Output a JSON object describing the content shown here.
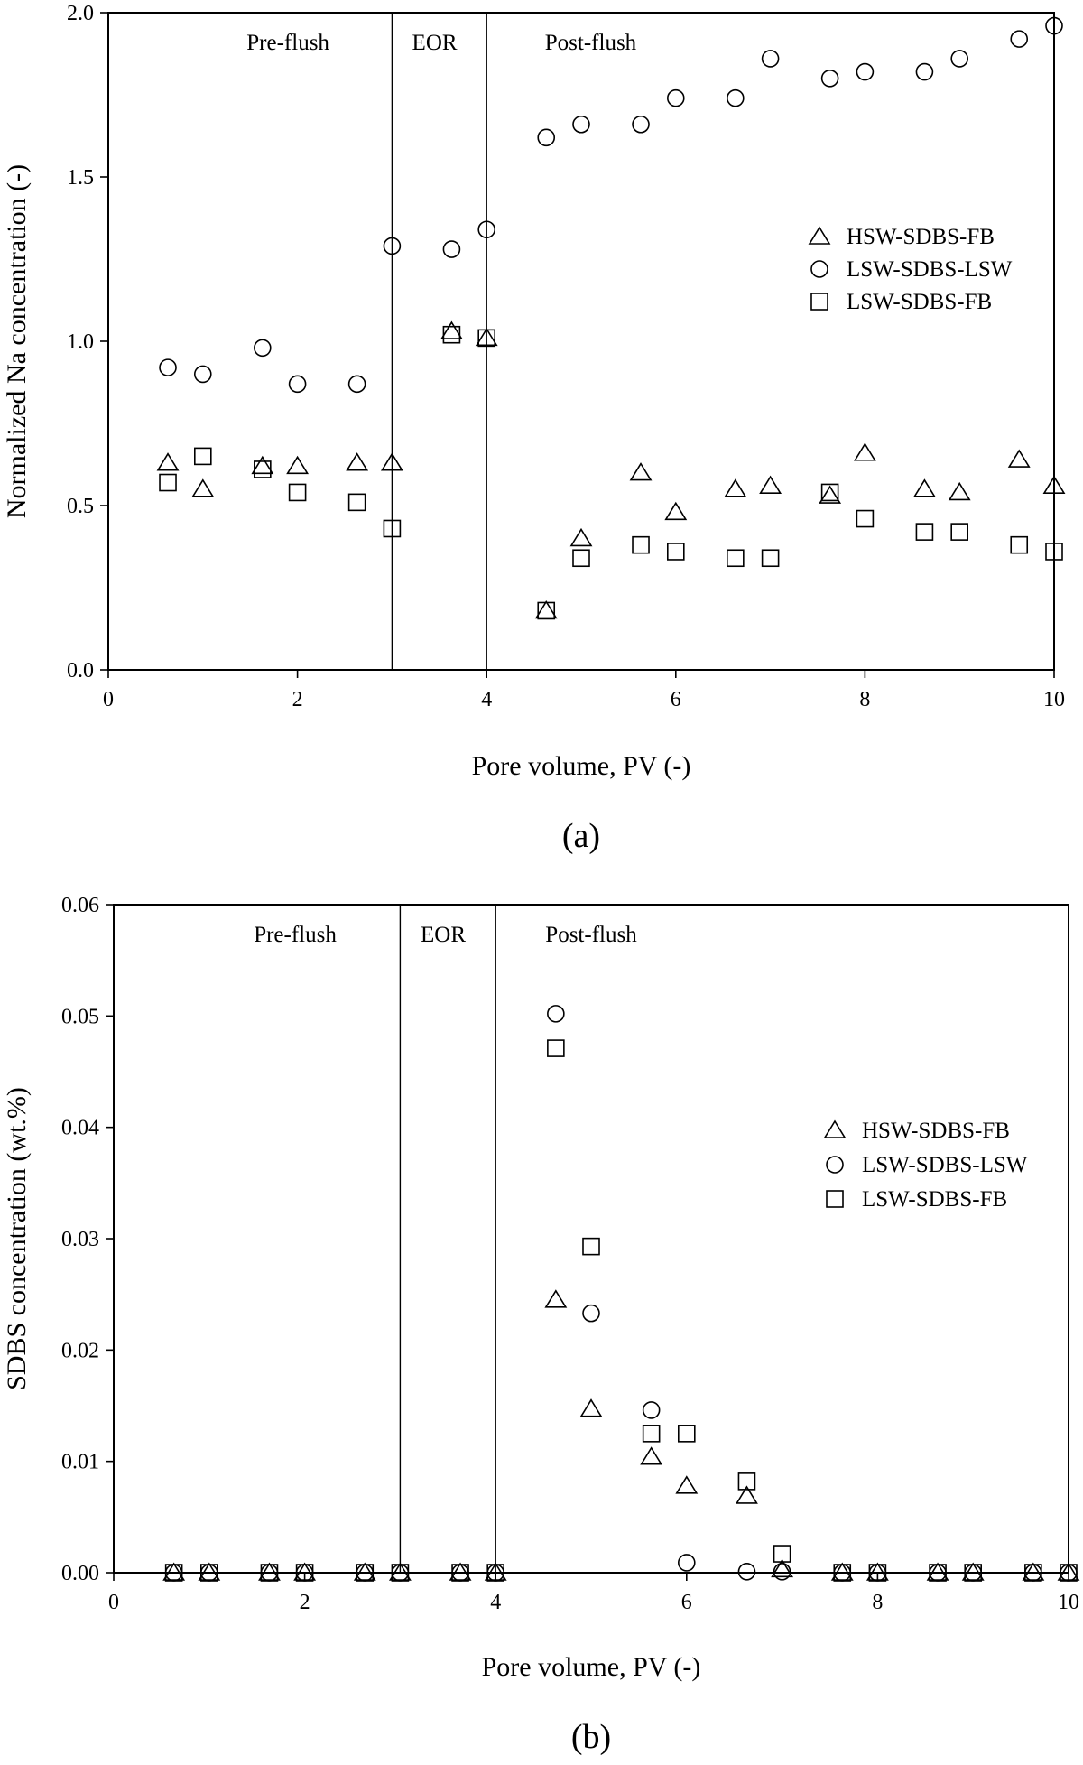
{
  "chart_data": [
    {
      "type": "scatter",
      "panel_label": "(a)",
      "xlabel": "Pore volume, PV (-)",
      "ylabel": "Normalized Na concentration (-)",
      "xlim": [
        0,
        10
      ],
      "ylim": [
        0,
        2.0
      ],
      "x_ticks": [
        0,
        2,
        4,
        6,
        8,
        10
      ],
      "y_ticks": [
        0.0,
        0.5,
        1.0,
        1.5,
        2.0
      ],
      "x_tick_labels": [
        "0",
        "2",
        "4",
        "6",
        "8",
        "10"
      ],
      "y_tick_labels": [
        "0.0",
        "0.5",
        "1.0",
        "1.5",
        "2.0"
      ],
      "region_boundaries": [
        3,
        4
      ],
      "regions": [
        {
          "label": "Pre-flush",
          "x": 1.9
        },
        {
          "label": "EOR",
          "x": 3.45
        },
        {
          "label": "Post-flush",
          "x": 5.1
        }
      ],
      "legend_position": "right-middle",
      "grid": false,
      "series": [
        {
          "name": "HSW-SDBS-FB",
          "marker": "triangle",
          "x": [
            0.63,
            1.0,
            1.63,
            2.0,
            2.63,
            3.0,
            3.63,
            4.0,
            4.63,
            5.0,
            5.63,
            6.0,
            6.63,
            7.0,
            7.63,
            8.0,
            8.63,
            9.0,
            9.63,
            10.0
          ],
          "y": [
            0.63,
            0.55,
            0.62,
            0.62,
            0.63,
            0.63,
            1.03,
            1.01,
            0.18,
            0.4,
            0.6,
            0.48,
            0.55,
            0.56,
            0.53,
            0.66,
            0.55,
            0.54,
            0.64,
            0.56
          ]
        },
        {
          "name": "LSW-SDBS-LSW",
          "marker": "circle",
          "x": [
            0.63,
            1.0,
            1.63,
            2.0,
            2.63,
            3.0,
            3.63,
            4.0,
            4.63,
            5.0,
            5.63,
            6.0,
            6.63,
            7.0,
            7.63,
            8.0,
            8.63,
            9.0,
            9.63,
            10.0
          ],
          "y": [
            0.92,
            0.9,
            0.98,
            0.87,
            0.87,
            1.29,
            1.28,
            1.34,
            1.62,
            1.66,
            1.66,
            1.74,
            1.74,
            1.86,
            1.8,
            1.82,
            1.82,
            1.86,
            1.92,
            1.96
          ]
        },
        {
          "name": "LSW-SDBS-FB",
          "marker": "square",
          "x": [
            0.63,
            1.0,
            1.63,
            2.0,
            2.63,
            3.0,
            3.63,
            4.0,
            4.63,
            5.0,
            5.63,
            6.0,
            6.63,
            7.0,
            7.63,
            8.0,
            8.63,
            9.0,
            9.63,
            10.0
          ],
          "y": [
            0.57,
            0.65,
            0.61,
            0.54,
            0.51,
            0.43,
            1.02,
            1.01,
            0.18,
            0.34,
            0.38,
            0.36,
            0.34,
            0.34,
            0.54,
            0.46,
            0.42,
            0.42,
            0.38,
            0.36
          ]
        }
      ]
    },
    {
      "type": "scatter",
      "panel_label": "(b)",
      "xlabel": "Pore volume, PV (-)",
      "ylabel": "SDBS concentration (wt.%)",
      "xlim": [
        0,
        10
      ],
      "ylim": [
        0,
        0.06
      ],
      "x_ticks": [
        0,
        2,
        4,
        6,
        8,
        10
      ],
      "y_ticks": [
        0.0,
        0.01,
        0.02,
        0.03,
        0.04,
        0.05,
        0.06
      ],
      "x_tick_labels": [
        "0",
        "2",
        "4",
        "6",
        "8",
        "10"
      ],
      "y_tick_labels": [
        "0.00",
        "0.01",
        "0.02",
        "0.03",
        "0.04",
        "0.05",
        "0.06"
      ],
      "region_boundaries": [
        3,
        4
      ],
      "regions": [
        {
          "label": "Pre-flush",
          "x": 1.9
        },
        {
          "label": "EOR",
          "x": 3.45
        },
        {
          "label": "Post-flush",
          "x": 5.0
        }
      ],
      "legend_position": "right-middle",
      "grid": false,
      "series": [
        {
          "name": "HSW-SDBS-FB",
          "marker": "triangle",
          "x": [
            0.63,
            1.0,
            1.63,
            2.0,
            2.63,
            3.0,
            3.63,
            4.0,
            4.63,
            5.0,
            5.63,
            6.0,
            6.63,
            7.0,
            7.63,
            8.0,
            8.63,
            9.0,
            9.63,
            10.0
          ],
          "y": [
            0,
            0,
            0,
            0,
            0,
            0,
            0,
            0,
            0.0245,
            0.0147,
            0.0104,
            0.0078,
            0.0069,
            0.0003,
            0,
            0,
            0,
            0,
            0,
            0
          ]
        },
        {
          "name": "LSW-SDBS-LSW",
          "marker": "circle",
          "x": [
            0.63,
            1.0,
            1.63,
            2.0,
            2.63,
            3.0,
            3.63,
            4.0,
            4.63,
            5.0,
            5.63,
            6.0,
            6.63,
            7.0,
            7.63,
            8.0,
            8.63,
            9.0,
            9.63,
            10.0
          ],
          "y": [
            0,
            0,
            0,
            0,
            0,
            0,
            0,
            0,
            0.0502,
            0.0233,
            0.0146,
            0.0009,
            0.0001,
            0.0001,
            0,
            0,
            0,
            0,
            0,
            0
          ]
        },
        {
          "name": "LSW-SDBS-FB",
          "marker": "square",
          "x": [
            0.63,
            1.0,
            1.63,
            2.0,
            2.63,
            3.0,
            3.63,
            4.0,
            4.63,
            5.0,
            5.63,
            6.0,
            6.63,
            7.0,
            7.63,
            8.0,
            8.63,
            9.0,
            9.63,
            10.0
          ],
          "y": [
            0,
            0,
            0,
            0,
            0,
            0,
            0,
            0,
            0.0471,
            0.0293,
            0.0125,
            0.0125,
            0.0082,
            0.0017,
            0,
            0,
            0,
            0,
            0,
            0
          ]
        }
      ]
    }
  ]
}
